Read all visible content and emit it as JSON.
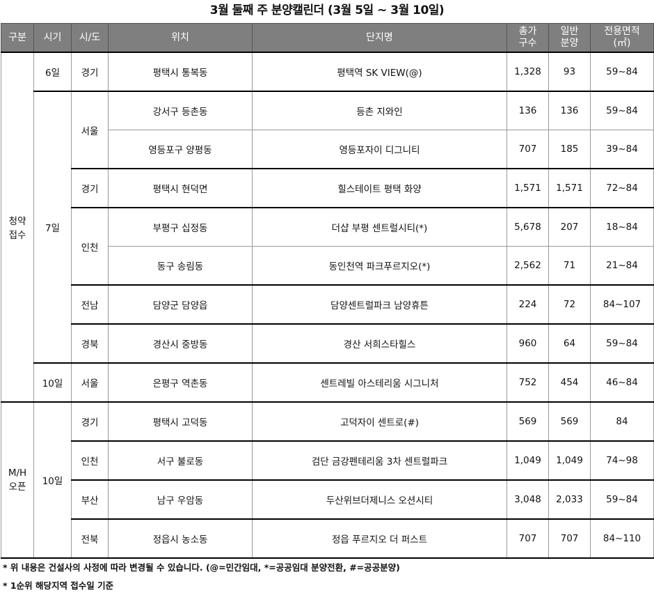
{
  "title": "3월 둘째 주 분양캘린더 (3월 5일 ~ 3월 10일)",
  "headers": [
    "구분",
    "시기",
    "시/도",
    "위치",
    "단지명",
    "총가\n구수",
    "일반\n분양",
    "전용면적\n(㎡)"
  ],
  "categories": [
    {
      "label": "청약\n접수",
      "periods": [
        {
          "label": "6일",
          "regions": [
            {
              "label": "경기",
              "rows": [
                [
                  "평택시 통복동",
                  "평택역 SK VIEW(@)",
                  "1,328",
                  "93",
                  "59~84"
                ]
              ]
            }
          ]
        },
        {
          "label": "7일",
          "regions": [
            {
              "label": "서울",
              "rows": [
                [
                  "강서구 등촌동",
                  "등촌 지와인",
                  "136",
                  "136",
                  "59~84"
                ],
                [
                  "영등포구 양평동",
                  "영등포자이 디그니티",
                  "707",
                  "185",
                  "39~84"
                ]
              ]
            },
            {
              "label": "경기",
              "rows": [
                [
                  "평택시 현덕면",
                  "힐스테이트 평택 화양",
                  "1,571",
                  "1,571",
                  "72~84"
                ]
              ]
            },
            {
              "label": "인천",
              "rows": [
                [
                  "부평구 십정동",
                  "더샵 부평 센트럴시티(*)",
                  "5,678",
                  "207",
                  "18~84"
                ],
                [
                  "동구 송림동",
                  "동인천역 파크푸르지오(*)",
                  "2,562",
                  "71",
                  "21~84"
                ]
              ]
            },
            {
              "label": "전남",
              "rows": [
                [
                  "담양군 담양읍",
                  "담양센트럴파크 남양휴튼",
                  "224",
                  "72",
                  "84~107"
                ]
              ]
            },
            {
              "label": "경북",
              "rows": [
                [
                  "경산시 중방동",
                  "경산 서희스타힐스",
                  "960",
                  "64",
                  "59~84"
                ]
              ]
            }
          ]
        },
        {
          "label": "10일",
          "regions": [
            {
              "label": "서울",
              "rows": [
                [
                  "은평구 역촌동",
                  "센트레빌 아스테리움 시그니처",
                  "752",
                  "454",
                  "46~84"
                ]
              ]
            }
          ]
        }
      ]
    },
    {
      "label": "M/H\n오픈",
      "periods": [
        {
          "label": "10일",
          "regions": [
            {
              "label": "경기",
              "rows": [
                [
                  "평택시 고덕동",
                  "고덕자이 센트로(#)",
                  "569",
                  "569",
                  "84"
                ]
              ]
            },
            {
              "label": "인천",
              "rows": [
                [
                  "서구 불로동",
                  "검단 금강펜테리움 3차 센트럴파크",
                  "1,049",
                  "1,049",
                  "74~98"
                ]
              ]
            },
            {
              "label": "부산",
              "rows": [
                [
                  "남구 우암동",
                  "두산위브더제니스 오션시티",
                  "3,048",
                  "2,033",
                  "59~84"
                ]
              ]
            },
            {
              "label": "전북",
              "rows": [
                [
                  "정읍시 농소동",
                  "정읍 푸르지오 더 퍼스트",
                  "707",
                  "707",
                  "84~110"
                ]
              ]
            }
          ]
        }
      ]
    }
  ],
  "notes": [
    "* 위 내용은 건설사의 사정에 따라 변경될 수 있습니다. (@=민간임대, *=공공임대 분양전환, #=공공분양)",
    "* 1순위 해당지역 접수일 기준"
  ]
}
